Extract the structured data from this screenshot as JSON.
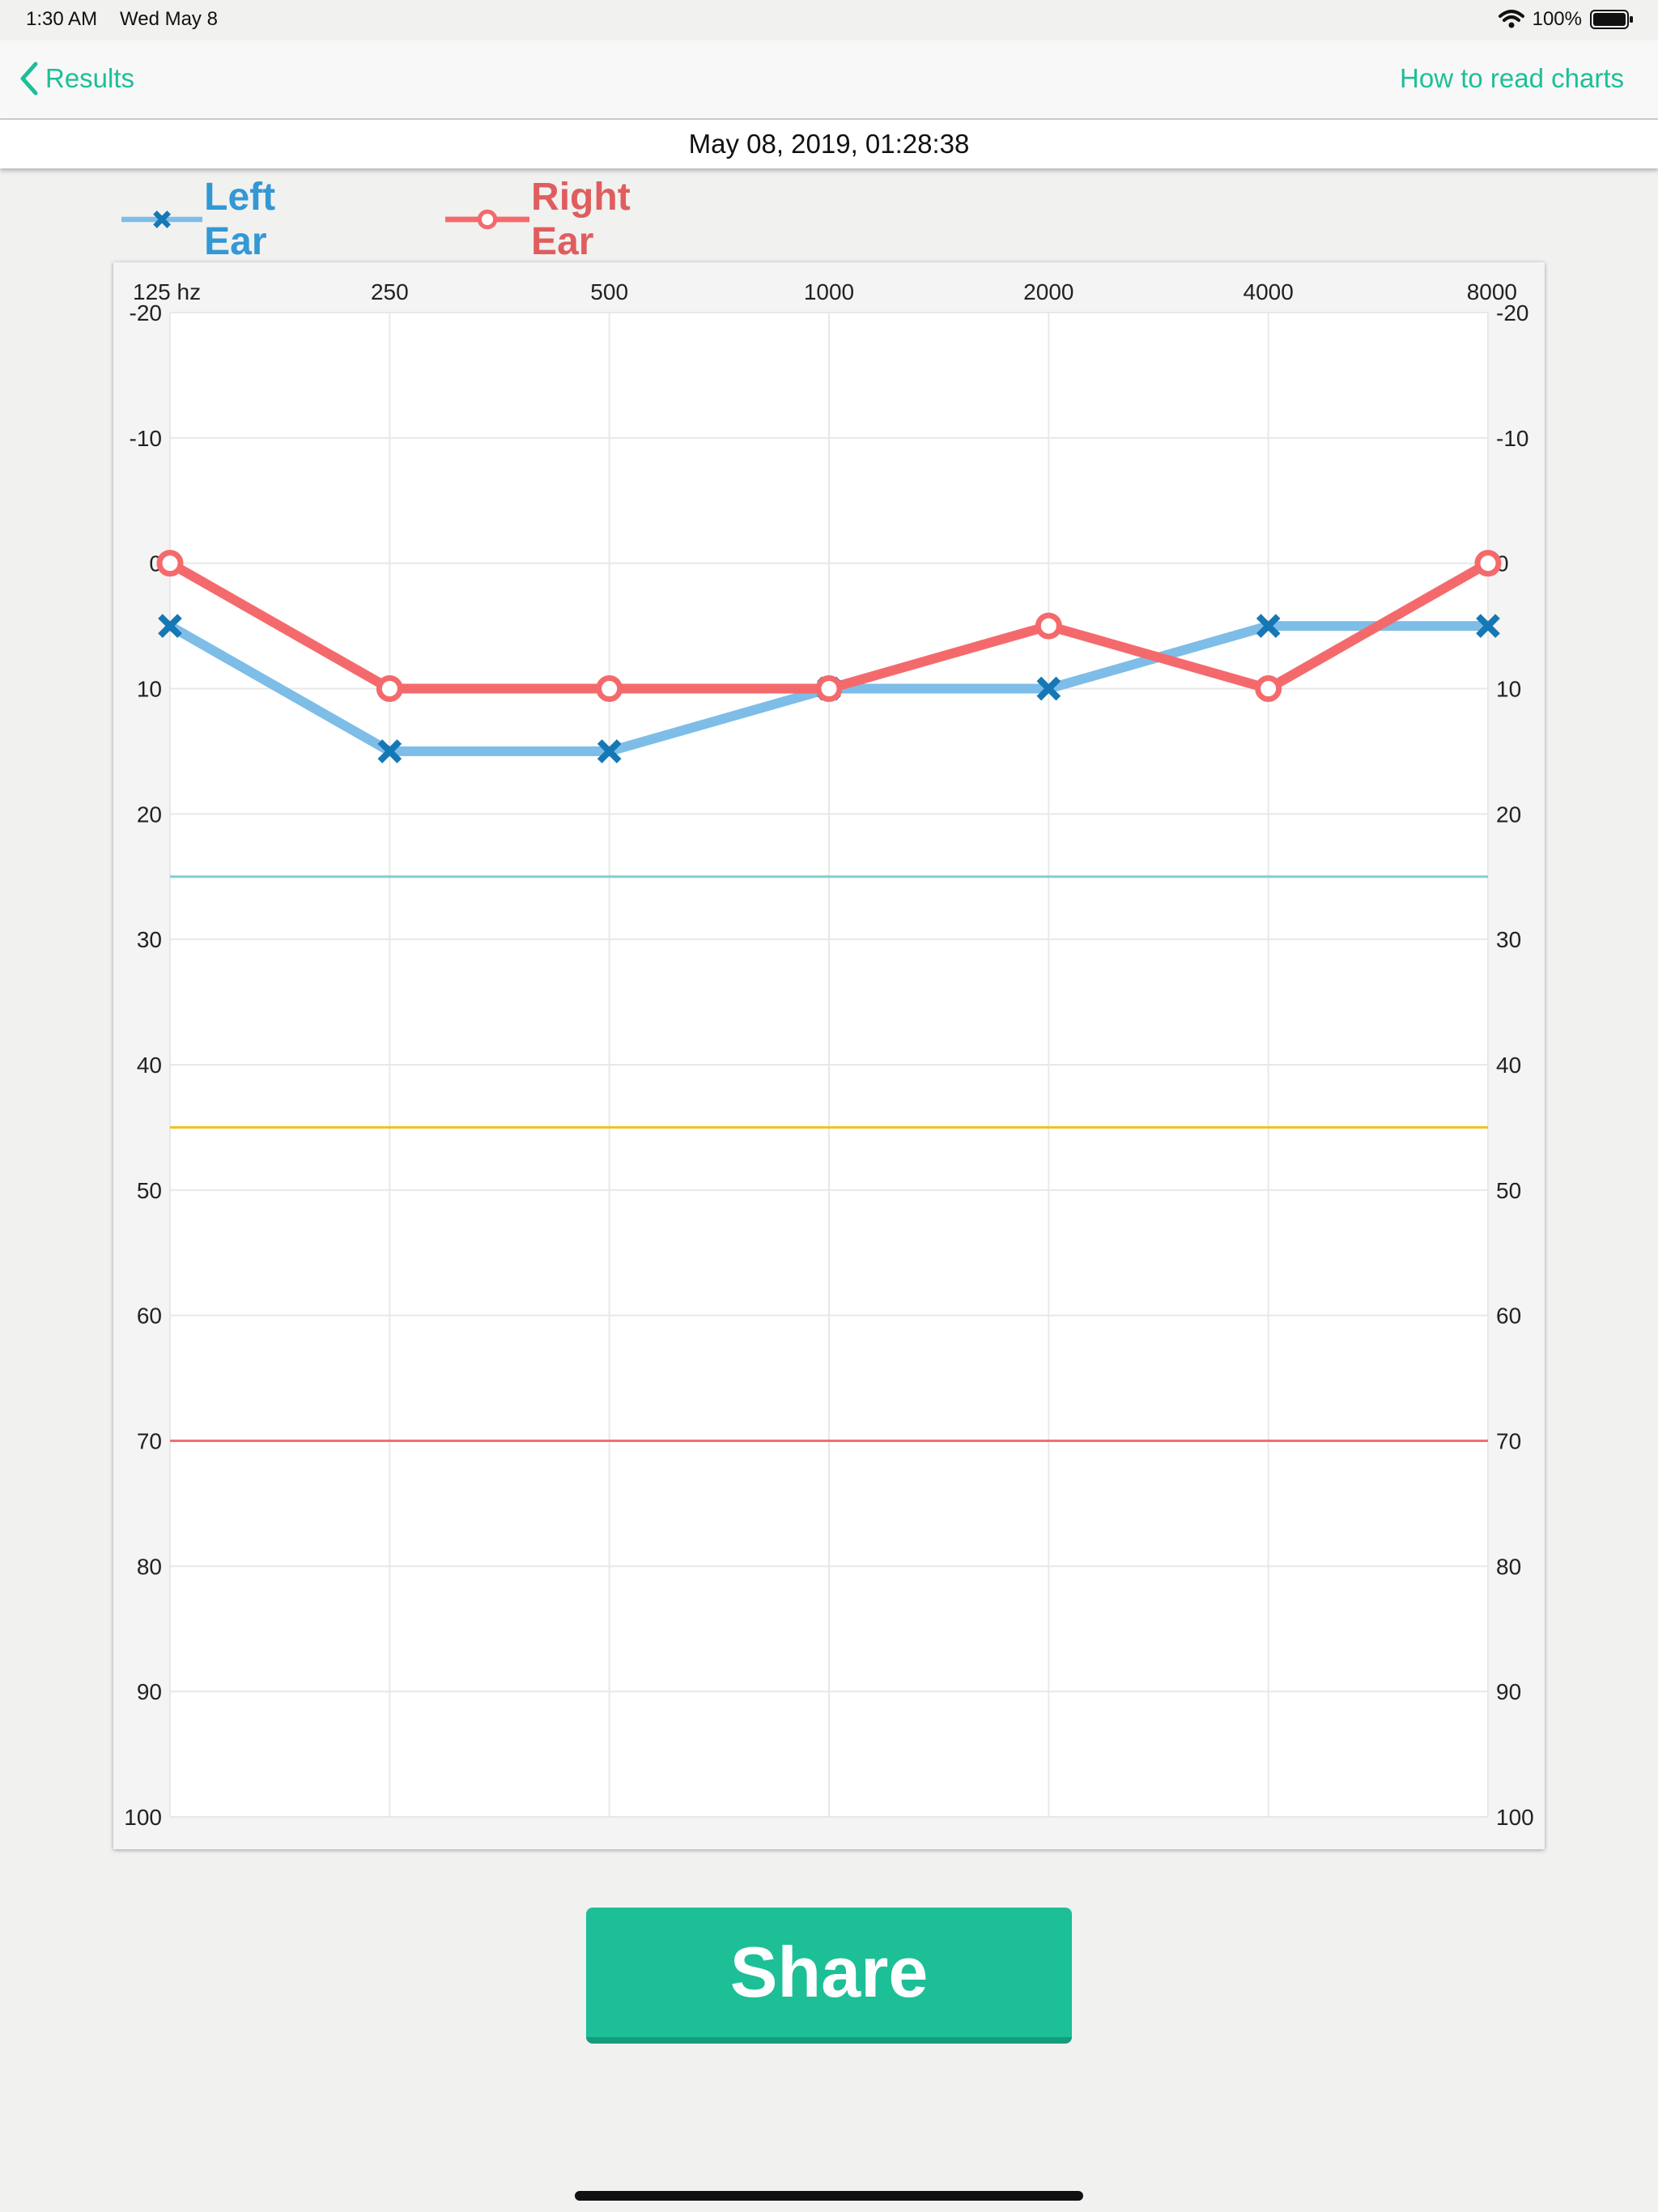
{
  "status_bar": {
    "time": "1:30 AM",
    "date": "Wed May 8",
    "battery": "100%"
  },
  "nav": {
    "back_label": "Results",
    "help_link": "How to read charts"
  },
  "test_date": "May 08, 2019, 01:28:38",
  "legend": {
    "left": "Left Ear",
    "right": "Right Ear"
  },
  "share_label": "Share",
  "colors": {
    "accent": "#1dbf97",
    "left_line": "#7dbde8",
    "left_marker": "#1677b5",
    "left_text": "#3398d4",
    "right_line": "#f46a6c",
    "right_text": "#e05d5f",
    "threshold_mild": "#7fd0cf",
    "threshold_moderate": "#f0c020",
    "threshold_severe": "#f07070"
  },
  "chart_data": {
    "type": "line",
    "title": "",
    "x_unit_label": "hz",
    "x": [
      "125",
      "250",
      "500",
      "1000",
      "2000",
      "4000",
      "8000"
    ],
    "x_tick_labels": [
      "125 hz",
      "250",
      "500",
      "1000",
      "2000",
      "4000",
      "8000"
    ],
    "ylim": [
      -20,
      100
    ],
    "y_inverted": true,
    "y_ticks": [
      -20,
      -10,
      0,
      10,
      20,
      30,
      40,
      50,
      60,
      70,
      80,
      90,
      100
    ],
    "y_axis_both_sides": true,
    "grid": true,
    "series": [
      {
        "name": "Left Ear",
        "marker": "x",
        "values": [
          5,
          15,
          15,
          10,
          10,
          5,
          5
        ]
      },
      {
        "name": "Right Ear",
        "marker": "circle",
        "values": [
          0,
          10,
          10,
          10,
          5,
          10,
          0
        ]
      }
    ],
    "threshold_lines": [
      {
        "value": 25,
        "color": "#7fd0cf"
      },
      {
        "value": 45,
        "color": "#f0c020"
      },
      {
        "value": 70,
        "color": "#f07070"
      }
    ],
    "legend_position": "top-left"
  }
}
